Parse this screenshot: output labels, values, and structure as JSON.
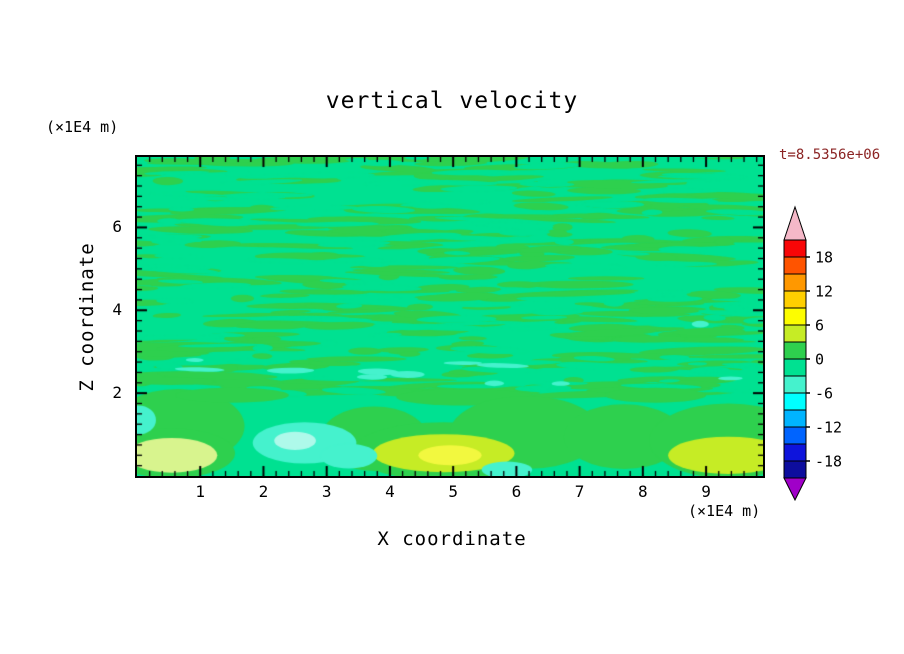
{
  "title": "vertical velocity",
  "timestamp_label": "t=8.5356e+06",
  "axes": {
    "x_label": "X coordinate",
    "x_unit_label": "(×1E4 m)",
    "y_label": "Z coordinate",
    "y_unit_label": "(×1E4 m)",
    "x_ticks": [
      "1",
      "2",
      "3",
      "4",
      "5",
      "6",
      "7",
      "8",
      "9"
    ],
    "x_tick_values": [
      1,
      2,
      3,
      4,
      5,
      6,
      7,
      8,
      9
    ],
    "y_ticks": [
      "2",
      "4",
      "6"
    ],
    "y_tick_values": [
      2,
      4,
      6
    ],
    "x_range": [
      0,
      9.9
    ],
    "y_range": [
      0,
      7.7
    ],
    "x_minor_step": 0.2,
    "y_minor_step": 0.25
  },
  "colorbar": {
    "tick_labels": [
      "18",
      "12",
      "6",
      "0",
      "-6",
      "-12",
      "-18"
    ],
    "tick_values": [
      18,
      12,
      6,
      0,
      -6,
      -12,
      -18
    ],
    "level_max": 21,
    "level_min": -21,
    "level_step": 3,
    "segment_colors_top_to_bottom": [
      "#f80607",
      "#ff5400",
      "#ff9800",
      "#ffcf00",
      "#fdfd00",
      "#c6ec25",
      "#2ed04e",
      "#00e191",
      "#45f2cd",
      "#00ffff",
      "#00b4ff",
      "#0064ff",
      "#0e14dc",
      "#0d0d9e"
    ],
    "over_arrow_color": "#f5b8c8",
    "under_arrow_color": "#a000c8"
  },
  "field": {
    "background_color": "#00e191",
    "streak_color": "#2ed04e",
    "accent_color": "#45f2cd",
    "texture": {
      "seed": 20240613,
      "streak_count": 300,
      "hole_count": 130,
      "accent_count": 12
    },
    "bottom_blobs": [
      {
        "x": 0.65,
        "z": 1.2,
        "rx": 1.05,
        "rz": 0.9,
        "color": "#2ed04e"
      },
      {
        "x": 1.5,
        "z": 1.95,
        "rx": 0.9,
        "rz": 0.18,
        "color": "#2ed04e"
      },
      {
        "x": 5.2,
        "z": 1.9,
        "rx": 1.1,
        "rz": 0.2,
        "color": "#2ed04e"
      },
      {
        "x": 8.2,
        "z": 1.95,
        "rx": 0.8,
        "rz": 0.18,
        "color": "#2ed04e"
      },
      {
        "x": 3.75,
        "z": 0.9,
        "rx": 0.85,
        "rz": 0.78,
        "color": "#2ed04e"
      },
      {
        "x": 4.85,
        "z": 0.6,
        "rx": 1.45,
        "rz": 0.7,
        "color": "#2ed04e"
      },
      {
        "x": 6.15,
        "z": 1.05,
        "rx": 1.2,
        "rz": 0.88,
        "color": "#2ed04e"
      },
      {
        "x": 7.7,
        "z": 0.95,
        "rx": 0.95,
        "rz": 0.78,
        "color": "#2ed04e"
      },
      {
        "x": 9.35,
        "z": 0.85,
        "rx": 1.25,
        "rz": 0.9,
        "color": "#2ed04e"
      },
      {
        "x": 0.55,
        "z": 0.55,
        "rx": 1.0,
        "rz": 0.6,
        "color": "#2ed04e"
      },
      {
        "x": 0.55,
        "z": 0.5,
        "rx": 0.72,
        "rz": 0.42,
        "color": "#d8f48e"
      },
      {
        "x": 4.85,
        "z": 0.55,
        "rx": 1.12,
        "rz": 0.46,
        "color": "#c6ec25"
      },
      {
        "x": 9.35,
        "z": 0.5,
        "rx": 0.95,
        "rz": 0.45,
        "color": "#c6ec25"
      },
      {
        "x": 4.95,
        "z": 0.5,
        "rx": 0.5,
        "rz": 0.24,
        "color": "#f2f83f"
      },
      {
        "x": 2.65,
        "z": 0.8,
        "rx": 0.82,
        "rz": 0.5,
        "color": "#45f2cd"
      },
      {
        "x": 3.35,
        "z": 0.48,
        "rx": 0.45,
        "rz": 0.3,
        "color": "#45f2cd"
      },
      {
        "x": 0.02,
        "z": 1.35,
        "rx": 0.28,
        "rz": 0.35,
        "color": "#45f2cd"
      },
      {
        "x": 5.85,
        "z": 0.15,
        "rx": 0.4,
        "rz": 0.2,
        "color": "#45f2cd"
      },
      {
        "x": 2.5,
        "z": 0.85,
        "rx": 0.33,
        "rz": 0.22,
        "color": "#aef9ea"
      }
    ]
  },
  "colors": {
    "text": "#000000",
    "timestamp": "#8b2323",
    "frame": "#000000",
    "page_background": "#ffffff"
  },
  "chart_data": {
    "type": "heatmap",
    "title": "vertical velocity",
    "xlabel": "X coordinate (×1E4 m)",
    "ylabel": "Z coordinate (×1E4 m)",
    "time_annotation": "t=8.5356e+06",
    "x_range": [
      0,
      9.9
    ],
    "y_range": [
      0,
      7.7
    ],
    "contour_levels": [
      -21,
      -18,
      -15,
      -12,
      -9,
      -6,
      -3,
      0,
      3,
      6,
      9,
      12,
      15,
      18,
      21
    ],
    "colorbar_labels": [
      18,
      12,
      6,
      0,
      -6,
      -12,
      -18
    ],
    "palette_low_to_high": [
      "#0d0d9e",
      "#0e14dc",
      "#0064ff",
      "#00b4ff",
      "#00ffff",
      "#45f2cd",
      "#00e191",
      "#2ed04e",
      "#c6ec25",
      "#fdfd00",
      "#ffcf00",
      "#ff9800",
      "#ff5400",
      "#f80607"
    ],
    "under_range_color": "#a000c8",
    "over_range_color": "#f5b8c8",
    "field_summary": [
      {
        "region": "z > 2 (×1E4 m)",
        "value_range": [
          -3,
          3
        ],
        "description": "fine horizontally elongated streaky alternation between the 0..+3 (green) and -3..0 (spring green) contour bands across the full x extent"
      },
      {
        "region": "z < 2 (×1E4 m)",
        "value_range": [
          -9,
          9
        ],
        "description": "larger convective cells: broad green (+) cells separated by spring-green background, with stronger updraft (yellow-green/yellow) and downdraft (cyan) patches near the surface"
      }
    ],
    "features": [
      {
        "x": 0.6,
        "z": 0.5,
        "value": 4.5,
        "label": "pale yellow-green updraft near left edge"
      },
      {
        "x": 2.7,
        "z": 0.8,
        "value": -6,
        "label": "cyan downdraft patch"
      },
      {
        "x": 3.35,
        "z": 0.5,
        "value": -5,
        "label": "secondary cyan downdraft lobe"
      },
      {
        "x": 4.9,
        "z": 0.55,
        "value": 7,
        "label": "strongest updraft, yellow core"
      },
      {
        "x": 9.3,
        "z": 0.5,
        "value": 5,
        "label": "yellow-green updraft at right edge"
      },
      {
        "x": 0.7,
        "z": 1.2,
        "value": 2,
        "label": "green cell"
      },
      {
        "x": 6.1,
        "z": 1.0,
        "value": 2,
        "label": "green cell"
      },
      {
        "x": 7.7,
        "z": 1.0,
        "value": 2,
        "label": "green cell"
      },
      {
        "x": 0.0,
        "z": 1.35,
        "value": -5,
        "label": "small cyan patch on left boundary"
      }
    ],
    "legend_position": "vertical colorbar at right with over/under range arrows",
    "grid": false
  }
}
